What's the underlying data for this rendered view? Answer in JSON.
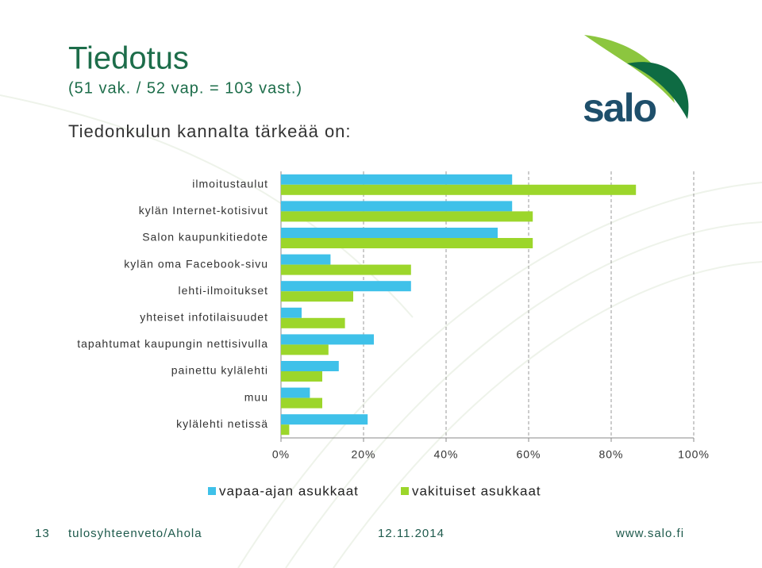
{
  "title": "Tiedotus",
  "subtitle": "(51 vak. / 52 vap. = 103 vast.)",
  "heading": "Tiedonkulun kannalta tärkeää on:",
  "logo": "salo",
  "footer": {
    "page": "13",
    "author": "tulosyhteenveto/Ahola",
    "date": "12.11.2014",
    "site": "www.salo.fi"
  },
  "chart_data": {
    "type": "hbar",
    "categories": [
      "ilmoitustaulut",
      "kylän Internet-kotisivut",
      "Salon kaupunkitiedote",
      "kylän oma Facebook-sivu",
      "lehti-ilmoitukset",
      "yhteiset infotilaisuudet",
      "tapahtumat kaupungin nettisivulla",
      "painettu kylälehti",
      "muu",
      "kylälehti netissä"
    ],
    "series": [
      {
        "name": "vapaa-ajan asukkaat",
        "color": "#3fc1e9",
        "values": [
          56,
          56,
          52.5,
          12,
          31.5,
          5,
          22.5,
          14,
          7,
          21
        ]
      },
      {
        "name": "vakituiset asukkaat",
        "color": "#9cd62b",
        "values": [
          86,
          61,
          61,
          31.5,
          17.5,
          15.5,
          11.5,
          10,
          10,
          2
        ]
      }
    ],
    "xlim": [
      0,
      100
    ],
    "xticks": [
      {
        "value": 0,
        "label": "0%"
      },
      {
        "value": 20,
        "label": "20%"
      },
      {
        "value": 40,
        "label": "40%"
      },
      {
        "value": 60,
        "label": "60%"
      },
      {
        "value": 80,
        "label": "80%"
      },
      {
        "value": 100,
        "label": "100%"
      }
    ],
    "grid": true
  }
}
